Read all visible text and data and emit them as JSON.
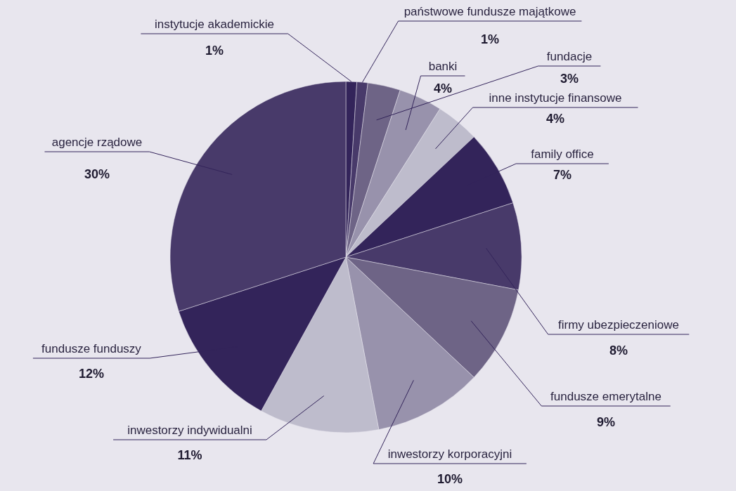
{
  "chart_data": {
    "type": "pie",
    "categories": [
      "instytucje akademickie",
      "państwowe fundusze majątkowe",
      "fundacje",
      "banki",
      "inne instytucje finansowe",
      "family office",
      "firmy ubezpieczeniowe",
      "fundusze emerytalne",
      "inwestorzy korporacyjni",
      "inwestorzy indywidualni",
      "fundusze funduszy",
      "agencje rządowe"
    ],
    "values": [
      1,
      1,
      3,
      4,
      4,
      7,
      8,
      9,
      10,
      11,
      12,
      30
    ],
    "colors": [
      "#33245a",
      "#483a6a",
      "#6e6486",
      "#9892ac",
      "#bebccc",
      "#33245a",
      "#483a6a",
      "#6e6486",
      "#9892ac",
      "#bebccc",
      "#33245a",
      "#483a6a"
    ],
    "value_labels": [
      "1%",
      "1%",
      "3%",
      "4%",
      "4%",
      "7%",
      "8%",
      "9%",
      "10%",
      "11%",
      "12%",
      "30%"
    ],
    "legend": false
  }
}
